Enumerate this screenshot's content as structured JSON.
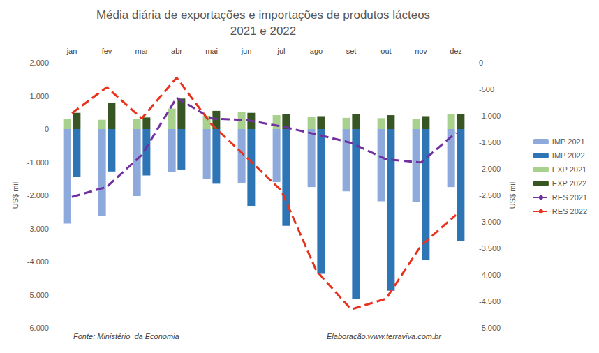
{
  "chart_data": {
    "type": "bar",
    "title": "Média diária de exportações e importações de produtos lácteos",
    "subtitle": "2021 e 2022",
    "ylabel": "US$ mil",
    "y2label": "US$ mil",
    "annotations": [
      "Fonte: Ministério  da Economia",
      "Elaboração:www.terraviva.com.br"
    ],
    "categories": [
      "jan",
      "fev",
      "mar",
      "abr",
      "mai",
      "jun",
      "jul",
      "ago",
      "set",
      "out",
      "nov",
      "dez"
    ],
    "ylim": [
      -6000,
      2000
    ],
    "yticks": [
      {
        "value": -6000,
        "label": "-6.000"
      },
      {
        "value": -5000,
        "label": "-5.000"
      },
      {
        "value": -4000,
        "label": "-4.000"
      },
      {
        "value": -3000,
        "label": "-3.000"
      },
      {
        "value": -2000,
        "label": "-2.000"
      },
      {
        "value": -1000,
        "label": "-1.000"
      },
      0,
      {
        "value": 1000,
        "label": "1.000"
      },
      {
        "value": 2000,
        "label": "2.000"
      }
    ],
    "y2lim": [
      -5000,
      0
    ],
    "y2ticks": [
      {
        "value": -5000,
        "label": "-5.000"
      },
      {
        "value": -4500,
        "label": "-4.500"
      },
      {
        "value": -4000,
        "label": "-4.000"
      },
      {
        "value": -3500,
        "label": "-3.500"
      },
      {
        "value": -3000,
        "label": "-3.000"
      },
      {
        "value": -2500,
        "label": "-2.500"
      },
      {
        "value": -2000,
        "label": "-2.000"
      },
      {
        "value": -1500,
        "label": "-1.500"
      },
      {
        "value": -1000,
        "label": "-1.000"
      },
      -500,
      0
    ],
    "grid": false,
    "legend": "right",
    "series": [
      {
        "name": "IMP 2021",
        "type": "bar",
        "color": "#8EA9DB",
        "values": [
          -2850,
          -2620,
          -2020,
          -1300,
          -1500,
          -1620,
          -1600,
          -1750,
          -1880,
          -2180,
          -2200,
          -1750
        ]
      },
      {
        "name": "IMP 2022",
        "type": "bar",
        "color": "#2E75B6",
        "values": [
          -1450,
          -1280,
          -1400,
          -1220,
          -1650,
          -2320,
          -2920,
          -4370,
          -5130,
          -4880,
          -3950,
          -3370
        ]
      },
      {
        "name": "EXP 2021",
        "type": "bar",
        "color": "#A9D18E",
        "values": [
          310,
          280,
          300,
          620,
          400,
          520,
          420,
          370,
          340,
          330,
          310,
          450
        ]
      },
      {
        "name": "EXP 2022",
        "type": "bar",
        "color": "#375623",
        "values": [
          490,
          800,
          350,
          920,
          550,
          490,
          450,
          390,
          450,
          420,
          390,
          450
        ]
      },
      {
        "name": "RES 2021",
        "type": "line",
        "axis": "y2",
        "color": "#7030A0",
        "line_style": "dashed",
        "marker": "none",
        "values": [
          -2530,
          -2340,
          -1740,
          -660,
          -1050,
          -1080,
          -1200,
          -1350,
          -1510,
          -1820,
          -1880,
          -1320
        ]
      },
      {
        "name": "RES 2022",
        "type": "line",
        "axis": "y2",
        "color": "#E8321E",
        "line_style": "dashed",
        "marker": "none",
        "values": [
          -950,
          -460,
          -1050,
          -280,
          -1160,
          -1780,
          -2410,
          -3920,
          -4650,
          -4450,
          -3450,
          -2870
        ]
      }
    ]
  }
}
